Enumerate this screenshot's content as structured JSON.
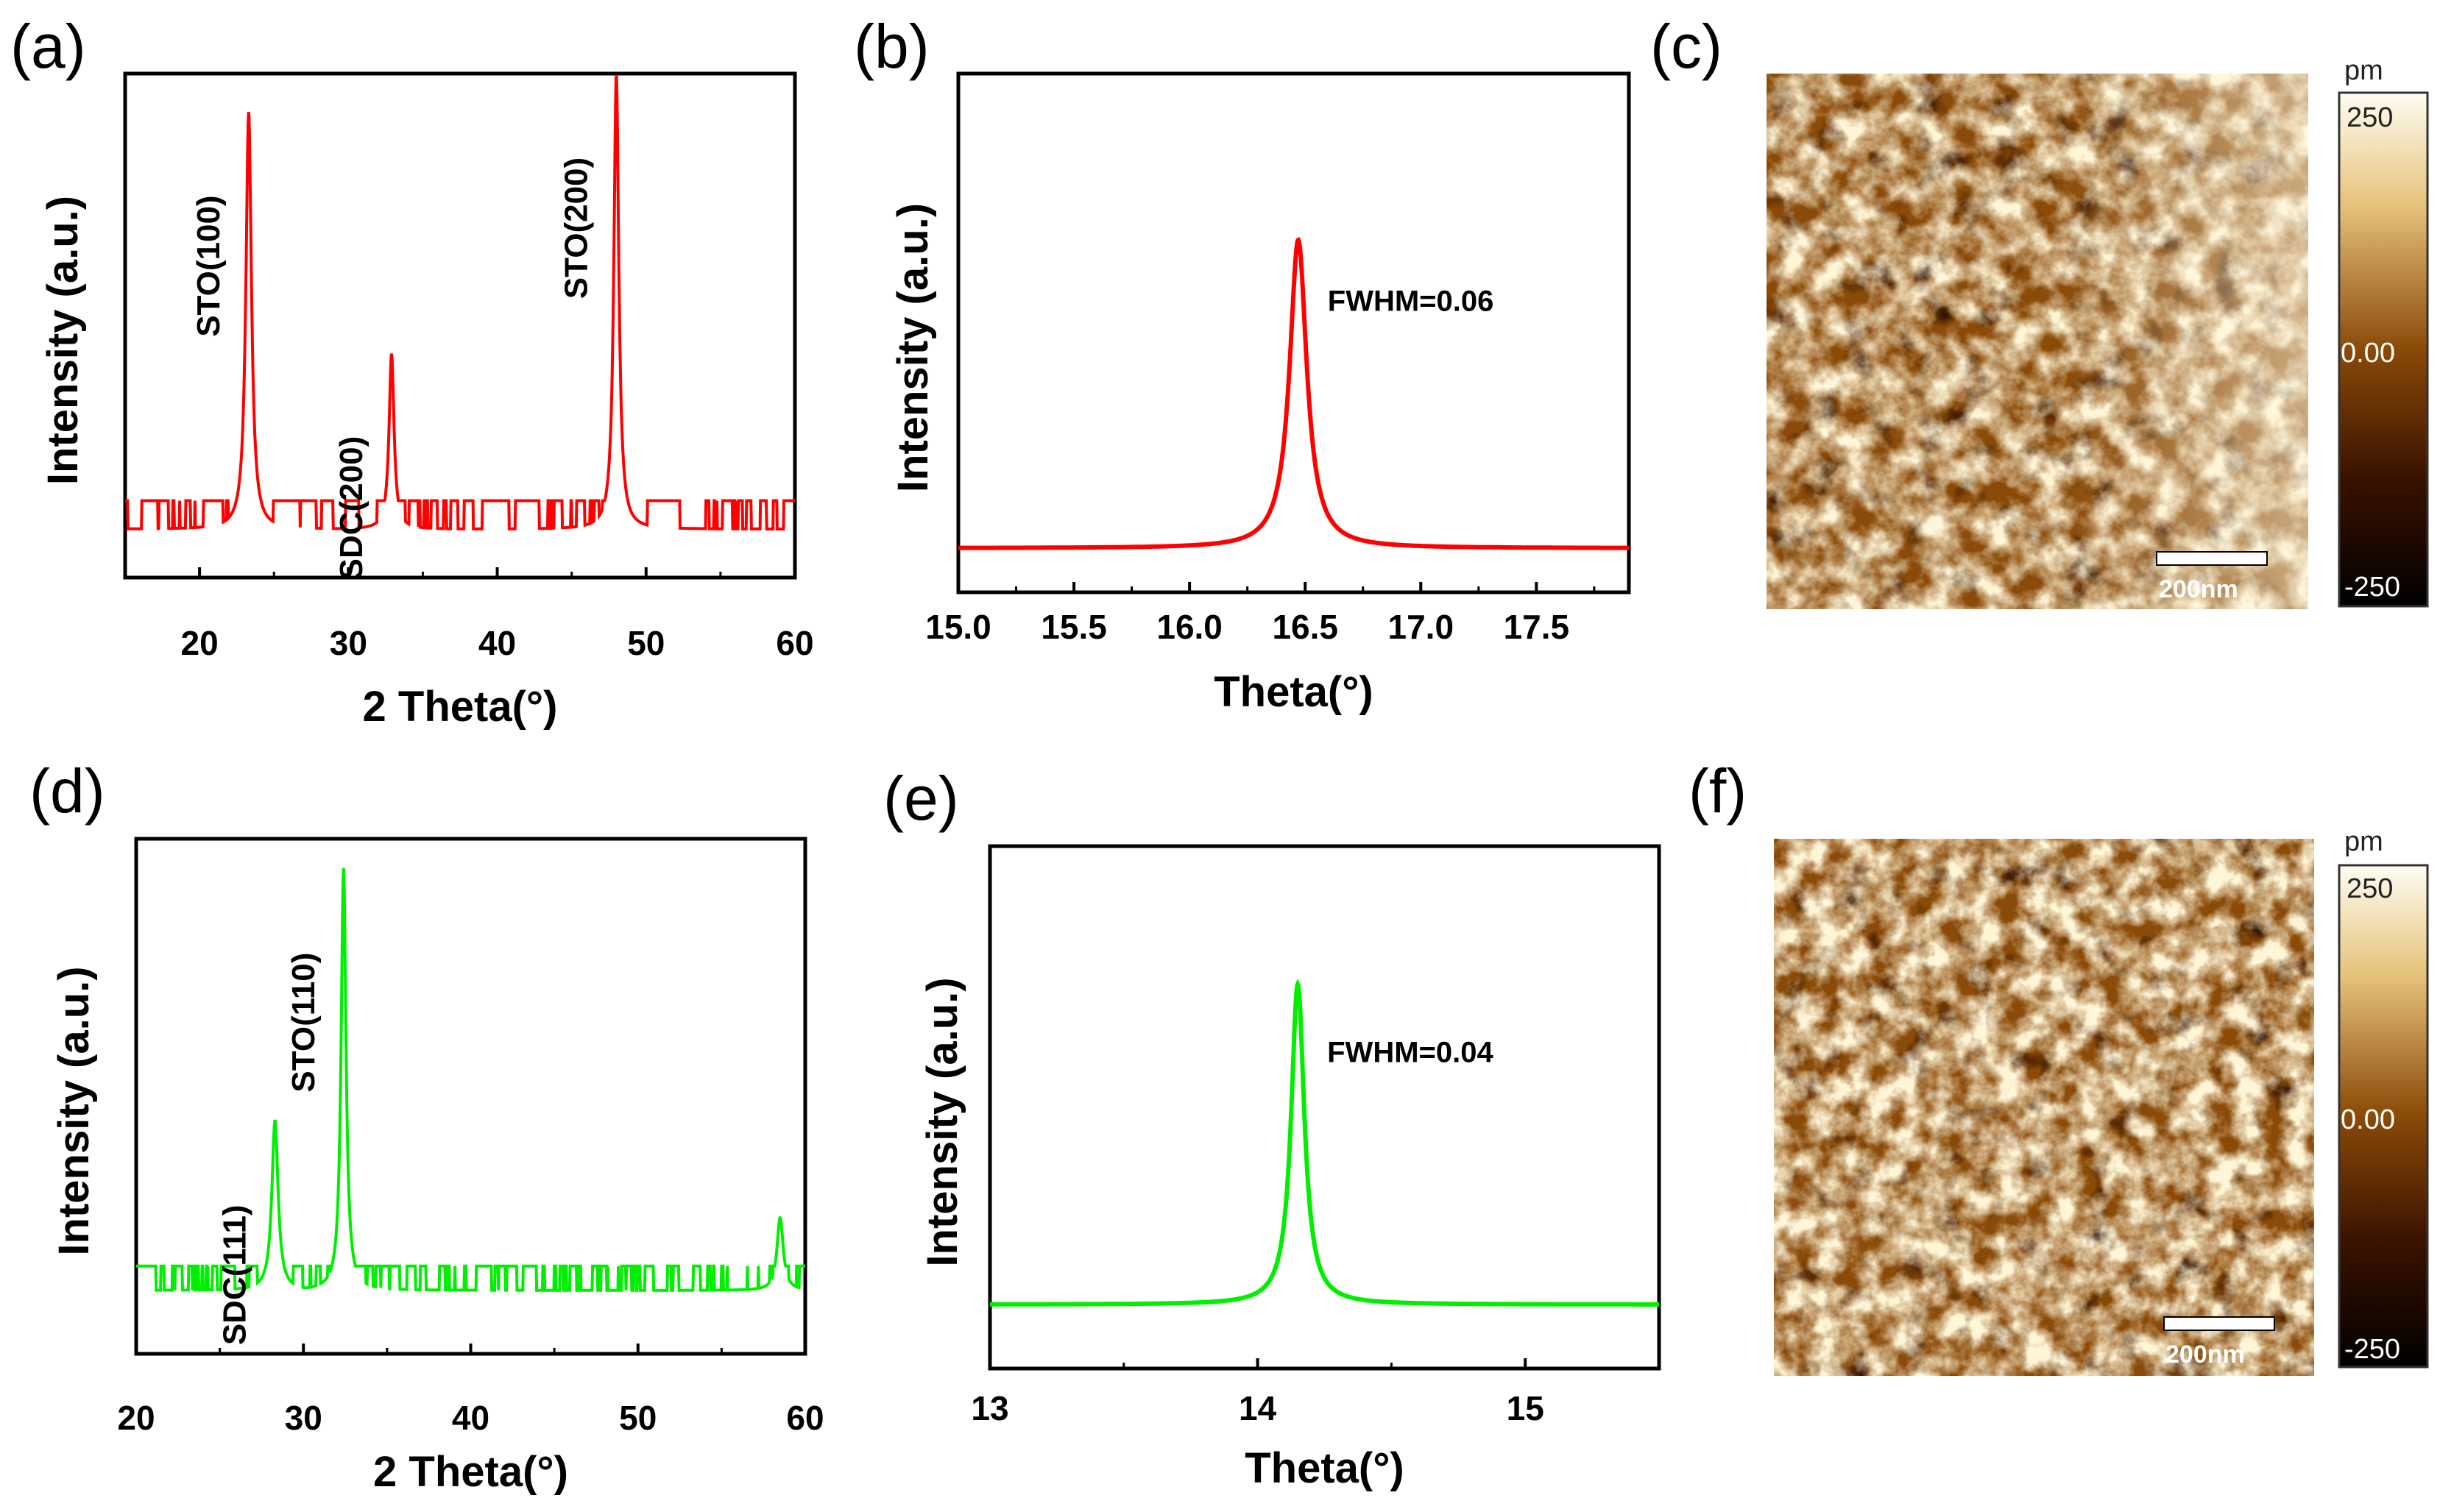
{
  "chart_data": [
    {
      "panel": "(a)",
      "type": "line",
      "color": "#ff0000",
      "xlabel": "2 Theta(°)",
      "ylabel": "Intensity (a.u.)",
      "xlim": [
        15,
        60
      ],
      "ylim": [
        0,
        100
      ],
      "xticks": [
        "20",
        "30",
        "40",
        "50",
        "60"
      ],
      "baseline": 4,
      "noise_amplitude": 6,
      "peaks": [
        {
          "label": "STO(100)",
          "x": 23.3,
          "y": 92,
          "width": 0.45
        },
        {
          "label": "SDC(200)",
          "x": 32.9,
          "y": 41,
          "width": 0.4
        },
        {
          "label": "STO(200)",
          "x": 48.0,
          "y": 100,
          "width": 0.4
        }
      ]
    },
    {
      "panel": "(b)",
      "type": "line",
      "color": "#ff0000",
      "xlabel": "Theta(°)",
      "ylabel": "Intensity (a.u.)",
      "xlim": [
        15.0,
        17.9
      ],
      "ylim": [
        0,
        100
      ],
      "xticks": [
        "15.0",
        "15.5",
        "16.0",
        "16.5",
        "17.0",
        "17.5"
      ],
      "baseline": 3,
      "peaks": [
        {
          "x": 16.47,
          "y": 66,
          "fwhm": 0.06
        }
      ],
      "annotation": "FWHM=0.06"
    },
    {
      "panel": "(d)",
      "type": "line",
      "color": "#00ee00",
      "xlabel": "2 Theta(°)",
      "ylabel": "Intensity (a.u.)",
      "xlim": [
        20,
        60
      ],
      "ylim": [
        0,
        100
      ],
      "xticks": [
        "20",
        "30",
        "40",
        "50",
        "60"
      ],
      "baseline": 7,
      "noise_amplitude": 5,
      "peaks": [
        {
          "label": "SDC(111)",
          "x": 28.3,
          "y": 42,
          "width": 0.45
        },
        {
          "label": "STO(110)",
          "x": 32.4,
          "y": 94,
          "width": 0.35
        },
        {
          "x": 58.5,
          "y": 22,
          "width": 0.45
        }
      ]
    },
    {
      "panel": "(e)",
      "type": "line",
      "color": "#00ee00",
      "xlabel": "Theta(°)",
      "ylabel": "Intensity (a.u.)",
      "xlim": [
        13.0,
        15.5
      ],
      "ylim": [
        0,
        100
      ],
      "xticks": [
        "13",
        "14",
        "15"
      ],
      "baseline": 7,
      "peaks": [
        {
          "x": 14.15,
          "y": 72,
          "fwhm": 0.04
        }
      ],
      "annotation": "FWHM=0.04"
    }
  ],
  "afm_images": [
    {
      "panel": "(c)",
      "scale_bar": "200nm",
      "colorbar_unit": "pm",
      "colorbar_ticks": [
        "250",
        "0.00",
        "-250"
      ],
      "seed": 7
    },
    {
      "panel": "(f)",
      "scale_bar": "200nm",
      "colorbar_unit": "pm",
      "colorbar_ticks": [
        "250",
        "0.00",
        "-250"
      ],
      "seed": 19
    }
  ],
  "colors": {
    "xrd_red": "#ff0000",
    "xrd_green": "#00ee00",
    "afm_dark": "#1a0500",
    "afm_mid": "#8a4a08",
    "afm_light": "#fffbe8"
  }
}
